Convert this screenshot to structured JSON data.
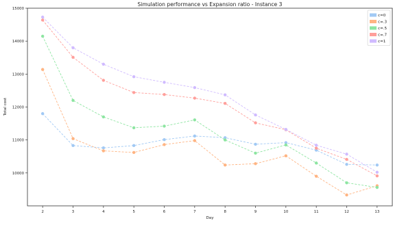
{
  "chart_data": {
    "type": "line",
    "title": "Simulation performance vs Expansion ratio - Instance 3",
    "xlabel": "Day",
    "ylabel": "Total cost",
    "x": [
      2,
      3,
      4,
      5,
      6,
      7,
      8,
      9,
      10,
      11,
      12,
      13
    ],
    "xticks": [
      "2",
      "3",
      "4",
      "5",
      "6",
      "7",
      "8",
      "9",
      "10",
      "11",
      "12",
      "13"
    ],
    "xlim": [
      1.5,
      13.5
    ],
    "ylim": [
      9000,
      15000
    ],
    "yticks": [
      "10000",
      "11000",
      "12000",
      "13000",
      "14000",
      "15000"
    ],
    "ytick_values": [
      10000,
      11000,
      12000,
      13000,
      14000,
      15000
    ],
    "grid": false,
    "legend": "top-right",
    "line_style": "dashed",
    "series": [
      {
        "name": "c=0",
        "color": "#a1c9f4",
        "values": [
          11800,
          10830,
          10760,
          10830,
          11010,
          11120,
          11070,
          10870,
          10920,
          10690,
          10260,
          10240
        ]
      },
      {
        "name": "c=.3",
        "color": "#ffb482",
        "values": [
          13140,
          11040,
          10670,
          10620,
          10860,
          10980,
          10240,
          10280,
          10520,
          9900,
          9330,
          9610
        ]
      },
      {
        "name": "c=.5",
        "color": "#8de5a1",
        "values": [
          14150,
          12200,
          11700,
          11370,
          11420,
          11610,
          11000,
          10600,
          10850,
          10300,
          9700,
          9560
        ]
      },
      {
        "name": "c=.7",
        "color": "#ff9f9b",
        "values": [
          14640,
          13510,
          12810,
          12440,
          12380,
          12270,
          12110,
          11520,
          11310,
          10750,
          10410,
          9910
        ]
      },
      {
        "name": "c=1",
        "color": "#d0bbff",
        "values": [
          14730,
          13800,
          13300,
          12920,
          12750,
          12590,
          12370,
          11760,
          11320,
          10840,
          10570,
          10020
        ]
      }
    ]
  }
}
